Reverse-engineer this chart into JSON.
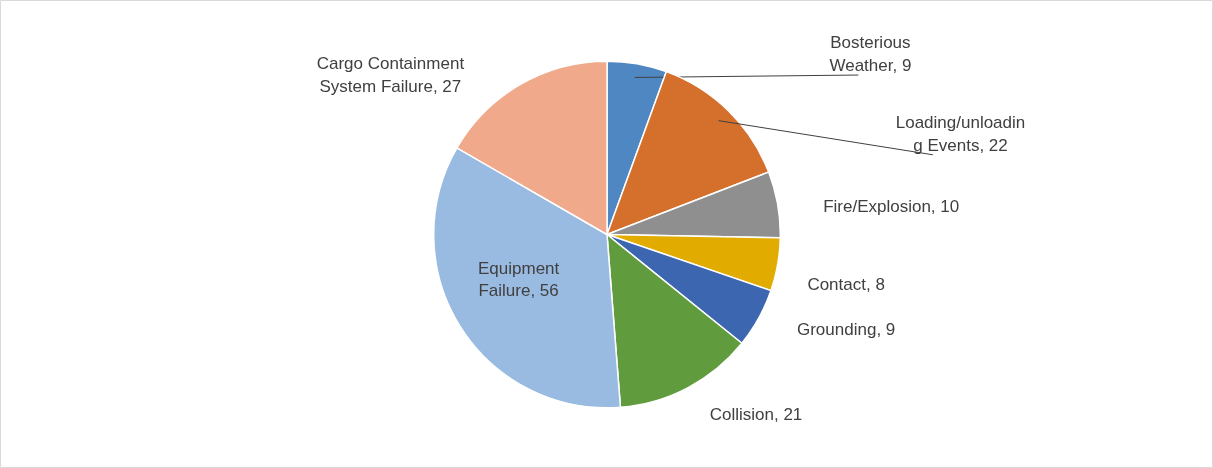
{
  "chart_data": {
    "type": "pie",
    "categories": [
      null,
      null,
      null,
      null,
      null,
      null,
      null,
      null
    ],
    "values": [
      9,
      22,
      10,
      8,
      9,
      21,
      56,
      27
    ],
    "colors": [
      "#4f87c2",
      "#d5702c",
      "#8f8f8f",
      "#e2ab00",
      "#3c66b0",
      "#609c3e",
      "#9abbe1",
      "#f0a98a"
    ],
    "value_labels": [
      "Bosterious Weather, 9",
      "Loading/unloading Events, 22",
      "Fire/Explosion, 10",
      "Contact, 8",
      "Grounding, 9",
      "Collision, 21",
      "Equipment Failure, 56",
      "Cargo Containment System Failure, 27"
    ]
  }
}
